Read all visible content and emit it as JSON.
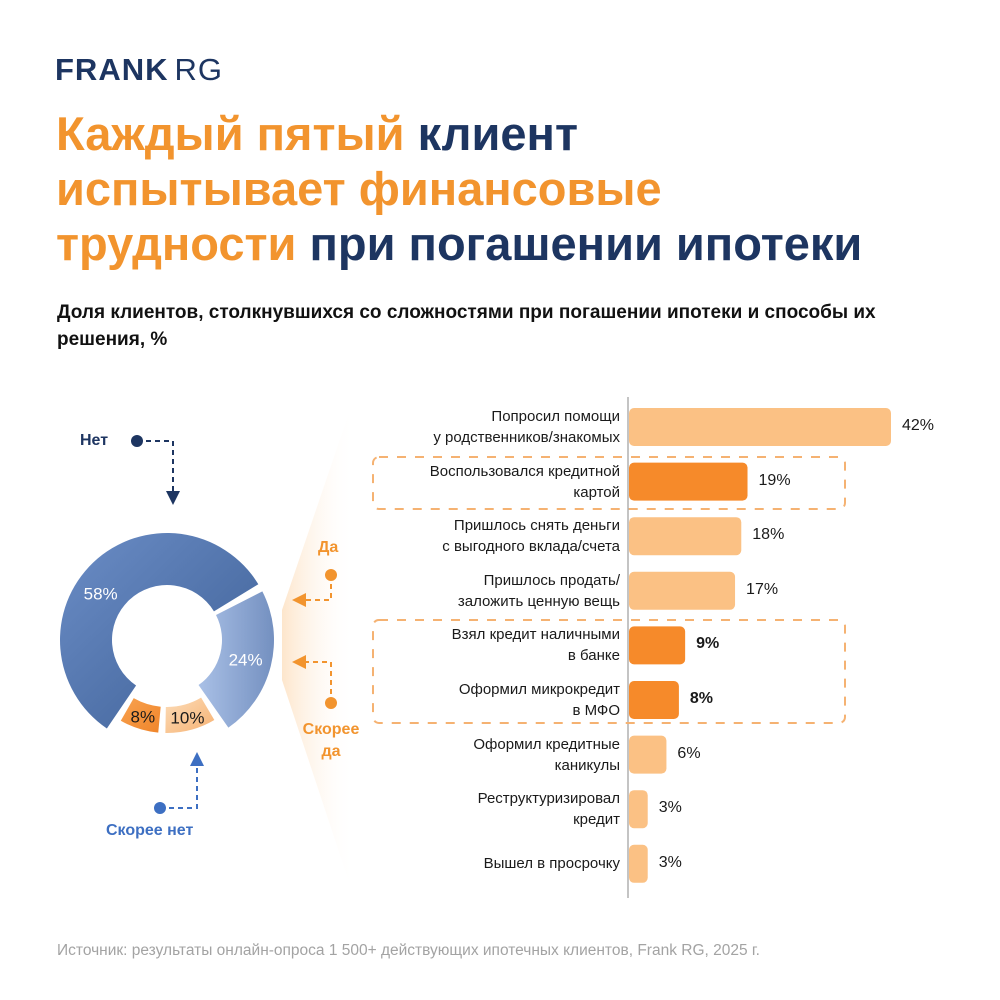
{
  "logo": {
    "bold": "FRANK",
    "light": "RG"
  },
  "title": {
    "line1_orange": "Каждый пятый",
    "line1_navy": " клиент",
    "line2_orange": "испытывает финансовые",
    "line3_orange": "трудности",
    "line3_navy": " при погашении ипотеки"
  },
  "subtitle": "Доля клиентов, столкнувшихся со сложностями при погашении ипотеки и способы их решения, %",
  "source": "Источник: результаты онлайн-опроса 1 500+ действующих ипотечных клиентов, Frank RG, 2025 г.",
  "colors": {
    "navy": "#1d3561",
    "orange": "#f2942e",
    "bar_light": "#fbc184",
    "bar_dark": "#f68a2a",
    "net": "#5a7bb0",
    "skoree_net": "#8ea8d4",
    "da": "#f4923a",
    "skoree_da": "#f9c48d"
  },
  "chart_data": [
    {
      "type": "pie",
      "subtype": "donut",
      "slices": [
        {
          "name": "Нет",
          "value": 58,
          "label": "58%"
        },
        {
          "name": "Скорее нет",
          "value": 24,
          "label": "24%"
        },
        {
          "name": "Скорее да",
          "value": 10,
          "label": "10%"
        },
        {
          "name": "Да",
          "value": 8,
          "label": "8%"
        }
      ],
      "annotations": [
        "Нет",
        "Скорее нет",
        "Да",
        "Скорее да"
      ]
    },
    {
      "type": "bar",
      "orientation": "horizontal",
      "categories": [
        "Попросил помощи у родственников/знакомых",
        "Воспользовался кредитной картой",
        "Пришлось снять деньги с выгодного вклада/счета",
        "Пришлось продать/ заложить ценную вещь",
        "Взял кредит наличными в банке",
        "Оформил микрокредит в МФО",
        "Оформил кредитные каникулы",
        "Реструктуризировал кредит",
        "Вышел в просрочку"
      ],
      "label_lines": [
        [
          "Попросил помощи",
          "у родственников/знакомых"
        ],
        [
          "Воспользовался кредитной",
          "картой"
        ],
        [
          "Пришлось снять деньги",
          "с выгодного вклада/счета"
        ],
        [
          "Пришлось продать/",
          "заложить ценную вещь"
        ],
        [
          "Взял кредит наличными",
          "в банке"
        ],
        [
          "Оформил микрокредит",
          "в МФО"
        ],
        [
          "Оформил кредитные",
          "каникулы"
        ],
        [
          "Реструктуризировал",
          "кредит"
        ],
        [
          "Вышел в просрочку"
        ]
      ],
      "values": [
        42,
        19,
        18,
        17,
        9,
        8,
        6,
        3,
        3
      ],
      "value_labels": [
        "42%",
        "19%",
        "18%",
        "17%",
        "9%",
        "8%",
        "6%",
        "3%",
        "3%"
      ],
      "highlighted": [
        false,
        true,
        false,
        false,
        true,
        true,
        false,
        false,
        false
      ],
      "xlim": [
        0,
        42
      ],
      "unit": "%"
    }
  ]
}
